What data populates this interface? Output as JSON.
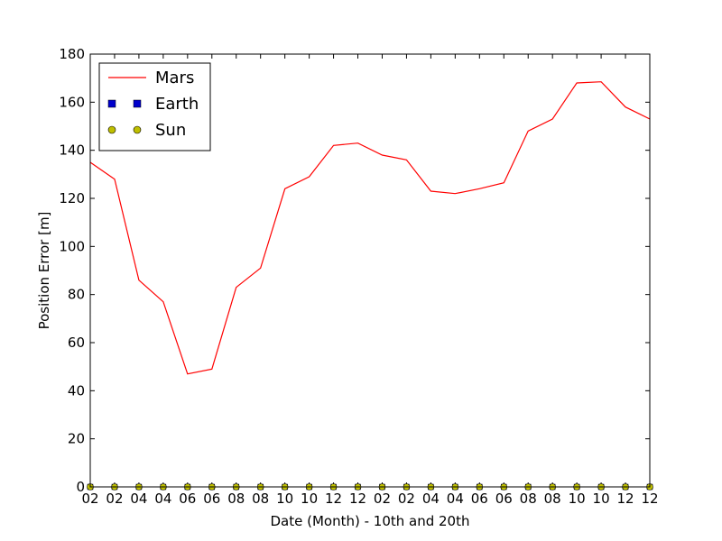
{
  "chart_data": {
    "type": "line",
    "xlabel": "Date (Month) - 10th and 20th",
    "ylabel": "Position Error [m]",
    "x_tick_labels": [
      "02",
      "02",
      "04",
      "04",
      "06",
      "06",
      "08",
      "08",
      "10",
      "10",
      "12",
      "12",
      "02",
      "02",
      "04",
      "04",
      "06",
      "06",
      "08",
      "08",
      "10",
      "10",
      "12",
      "12"
    ],
    "ylim": [
      0,
      180
    ],
    "y_ticks": [
      0,
      20,
      40,
      60,
      80,
      100,
      120,
      140,
      160,
      180
    ],
    "legend_location": "upper-left",
    "series": [
      {
        "name": "Mars",
        "style": "line",
        "color": "#ff0000",
        "values": [
          135,
          128,
          86,
          77,
          47,
          49,
          83,
          91,
          124,
          129,
          142,
          143,
          138,
          136,
          123,
          122,
          124,
          126.5,
          148,
          153,
          168,
          168.5,
          158,
          153
        ]
      },
      {
        "name": "Earth",
        "style": "square-markers",
        "color": "#0000cc",
        "values": [
          0,
          0,
          0,
          0,
          0,
          0,
          0,
          0,
          0,
          0,
          0,
          0,
          0,
          0,
          0,
          0,
          0,
          0,
          0,
          0,
          0,
          0,
          0,
          0
        ]
      },
      {
        "name": "Sun",
        "style": "circle-markers",
        "color": "#bfbf00",
        "values": [
          0,
          0,
          0,
          0,
          0,
          0,
          0,
          0,
          0,
          0,
          0,
          0,
          0,
          0,
          0,
          0,
          0,
          0,
          0,
          0,
          0,
          0,
          0,
          0
        ]
      }
    ]
  }
}
